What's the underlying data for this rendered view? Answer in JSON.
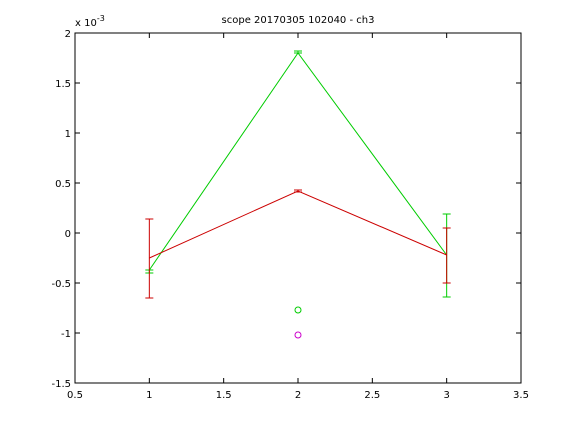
{
  "chart_data": {
    "type": "line",
    "title": "scope 20170305 102040 - ch3",
    "xlabel": "",
    "ylabel": "",
    "y_exponent_label": "x 10",
    "y_exponent_power": "-3",
    "y_scale": 0.001,
    "xlim": [
      0.5,
      3.5
    ],
    "ylim": [
      -1.5,
      2.0
    ],
    "xticks": [
      0.5,
      1,
      1.5,
      2,
      2.5,
      3,
      3.5
    ],
    "xtick_labels": [
      "0.5",
      "1",
      "1.5",
      "2",
      "2.5",
      "3",
      "3.5"
    ],
    "yticks": [
      -1.5,
      -1,
      -0.5,
      0,
      0.5,
      1,
      1.5,
      2
    ],
    "ytick_labels": [
      "-1.5",
      "-1",
      "-0.5",
      "0",
      "0.5",
      "1",
      "1.5",
      "2"
    ],
    "grid": false,
    "series": [
      {
        "color": "#00cc00",
        "x": [
          1,
          2,
          3
        ],
        "y": [
          -0.37,
          1.8,
          -0.22
        ],
        "err_low": [
          -0.4,
          1.8,
          -0.64
        ],
        "err_high": [
          -0.37,
          1.82,
          0.19
        ]
      },
      {
        "color": "#cc0000",
        "x": [
          1,
          2,
          3
        ],
        "y": [
          -0.25,
          0.42,
          -0.22
        ],
        "err_low": [
          -0.65,
          0.41,
          -0.5
        ],
        "err_high": [
          0.14,
          0.43,
          0.05
        ]
      }
    ],
    "markers": [
      {
        "x": 2,
        "y": -0.77,
        "color": "#00cc00",
        "symbol": "o"
      },
      {
        "x": 2,
        "y": -1.02,
        "color": "#cc00cc",
        "symbol": "o"
      }
    ]
  }
}
